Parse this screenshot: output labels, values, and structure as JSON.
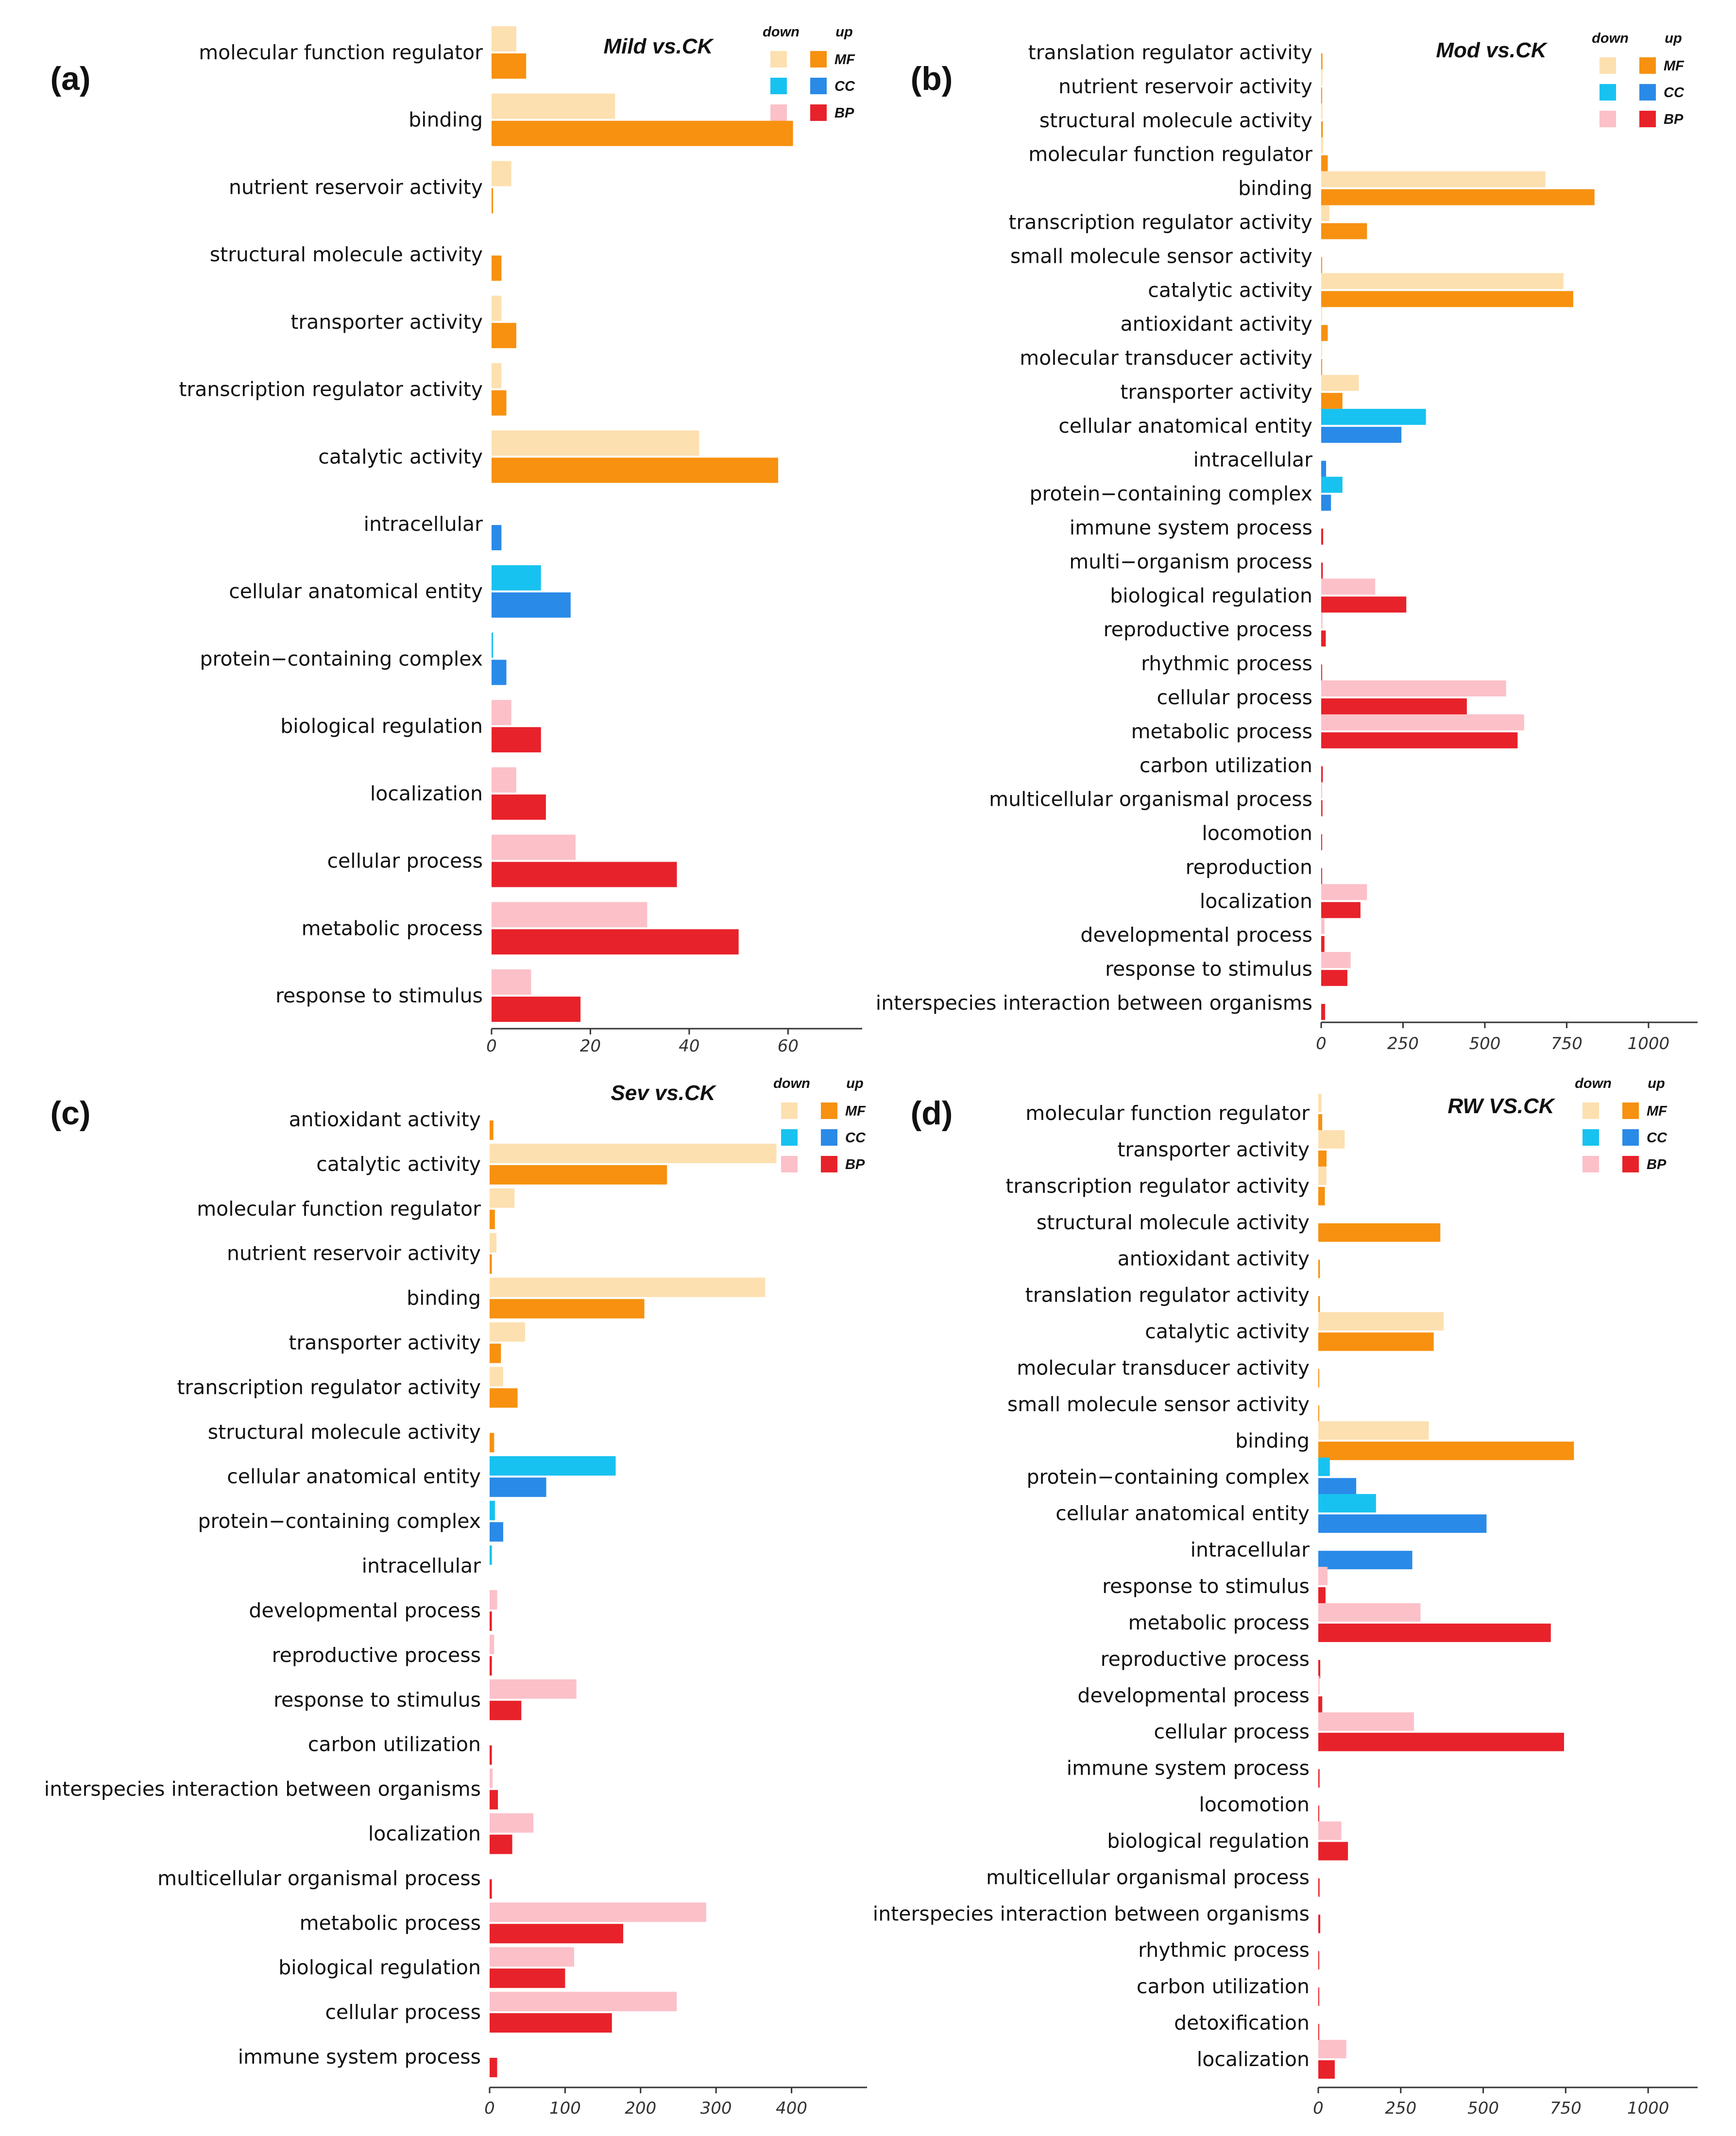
{
  "colors": {
    "MF": {
      "down": "#fde0b0",
      "up": "#f7910f"
    },
    "CC": {
      "down": "#18c2f0",
      "up": "#2a8ae8"
    },
    "BP": {
      "down": "#fcc0c8",
      "up": "#e8222a"
    }
  },
  "chart_data": [
    {
      "panel": "(a)",
      "type": "bar",
      "orientation": "horizontal",
      "title": "Mild vs.CK",
      "legend": {
        "down_label": "down",
        "up_label": "up",
        "groups": [
          "MF",
          "CC",
          "BP"
        ]
      },
      "xlim": [
        0,
        75
      ],
      "ticks": [
        0,
        20,
        40,
        60
      ],
      "categories": [
        {
          "label": "molecular function regulator",
          "group": "MF",
          "down": 5,
          "up": 7
        },
        {
          "label": "binding",
          "group": "MF",
          "down": 25,
          "up": 61
        },
        {
          "label": "nutrient reservoir activity",
          "group": "MF",
          "down": 4,
          "up": 0.3
        },
        {
          "label": "structural molecule activity",
          "group": "MF",
          "down": 0,
          "up": 2
        },
        {
          "label": "transporter activity",
          "group": "MF",
          "down": 2,
          "up": 5
        },
        {
          "label": "transcription regulator activity",
          "group": "MF",
          "down": 2,
          "up": 3
        },
        {
          "label": "catalytic activity",
          "group": "MF",
          "down": 42,
          "up": 58
        },
        {
          "label": "intracellular",
          "group": "CC",
          "down": 0,
          "up": 2
        },
        {
          "label": "cellular anatomical entity",
          "group": "CC",
          "down": 10,
          "up": 16
        },
        {
          "label": "protein−containing complex",
          "group": "CC",
          "down": 0.3,
          "up": 3
        },
        {
          "label": "biological regulation",
          "group": "BP",
          "down": 4,
          "up": 10
        },
        {
          "label": "localization",
          "group": "BP",
          "down": 5,
          "up": 11
        },
        {
          "label": "cellular process",
          "group": "BP",
          "down": 17,
          "up": 37.5
        },
        {
          "label": "metabolic process",
          "group": "BP",
          "down": 31.5,
          "up": 50
        },
        {
          "label": "response to stimulus",
          "group": "BP",
          "down": 8,
          "up": 18
        }
      ]
    },
    {
      "panel": "(b)",
      "type": "bar",
      "orientation": "horizontal",
      "title": "Mod vs.CK",
      "legend": {
        "down_label": "down",
        "up_label": "up",
        "groups": [
          "MF",
          "CC",
          "BP"
        ]
      },
      "xlim": [
        0,
        1150
      ],
      "ticks": [
        0,
        250,
        500,
        750,
        1000
      ],
      "categories": [
        {
          "label": "translation regulator activity",
          "group": "MF",
          "down": 0,
          "up": 4
        },
        {
          "label": "nutrient reservoir activity",
          "group": "MF",
          "down": 4,
          "up": 3
        },
        {
          "label": "structural molecule activity",
          "group": "MF",
          "down": 4,
          "up": 5
        },
        {
          "label": "molecular function regulator",
          "group": "MF",
          "down": 6,
          "up": 20
        },
        {
          "label": "binding",
          "group": "MF",
          "down": 685,
          "up": 835
        },
        {
          "label": "transcription regulator activity",
          "group": "MF",
          "down": 25,
          "up": 140
        },
        {
          "label": "small molecule sensor activity",
          "group": "MF",
          "down": 0,
          "up": 2
        },
        {
          "label": "catalytic activity",
          "group": "MF",
          "down": 740,
          "up": 770
        },
        {
          "label": "antioxidant activity",
          "group": "MF",
          "down": 3,
          "up": 20
        },
        {
          "label": "molecular transducer activity",
          "group": "MF",
          "down": 2,
          "up": 3
        },
        {
          "label": "transporter activity",
          "group": "MF",
          "down": 115,
          "up": 65
        },
        {
          "label": "cellular anatomical entity",
          "group": "CC",
          "down": 320,
          "up": 245
        },
        {
          "label": "intracellular",
          "group": "CC",
          "down": 0,
          "up": 15
        },
        {
          "label": "protein−containing complex",
          "group": "CC",
          "down": 65,
          "up": 30
        },
        {
          "label": "immune system process",
          "group": "BP",
          "down": 0,
          "up": 6
        },
        {
          "label": "multi−organism process",
          "group": "BP",
          "down": 0,
          "up": 5
        },
        {
          "label": "biological regulation",
          "group": "BP",
          "down": 165,
          "up": 260
        },
        {
          "label": "reproductive process",
          "group": "BP",
          "down": 4,
          "up": 14
        },
        {
          "label": "rhythmic process",
          "group": "BP",
          "down": 0,
          "up": 3
        },
        {
          "label": "cellular process",
          "group": "BP",
          "down": 565,
          "up": 445
        },
        {
          "label": "metabolic process",
          "group": "BP",
          "down": 620,
          "up": 600
        },
        {
          "label": "carbon utilization",
          "group": "BP",
          "down": 0,
          "up": 5
        },
        {
          "label": "multicellular organismal process",
          "group": "BP",
          "down": 3,
          "up": 4
        },
        {
          "label": "locomotion",
          "group": "BP",
          "down": 0,
          "up": 3
        },
        {
          "label": "reproduction",
          "group": "BP",
          "down": 0,
          "up": 3
        },
        {
          "label": "localization",
          "group": "BP",
          "down": 140,
          "up": 120
        },
        {
          "label": "developmental process",
          "group": "BP",
          "down": 10,
          "up": 10
        },
        {
          "label": "response to stimulus",
          "group": "BP",
          "down": 90,
          "up": 80
        },
        {
          "label": "interspecies interaction between organisms",
          "group": "BP",
          "down": 0,
          "up": 12
        }
      ]
    },
    {
      "panel": "(c)",
      "type": "bar",
      "orientation": "horizontal",
      "title": "Sev vs.CK",
      "legend": {
        "down_label": "down",
        "up_label": "up",
        "groups": [
          "MF",
          "CC",
          "BP"
        ]
      },
      "xlim": [
        0,
        500
      ],
      "ticks": [
        0,
        100,
        200,
        300,
        400
      ],
      "categories": [
        {
          "label": "antioxidant activity",
          "group": "MF",
          "down": 0,
          "up": 5
        },
        {
          "label": "catalytic activity",
          "group": "MF",
          "down": 380,
          "up": 235
        },
        {
          "label": "molecular function regulator",
          "group": "MF",
          "down": 33,
          "up": 7
        },
        {
          "label": "nutrient reservoir activity",
          "group": "MF",
          "down": 9,
          "up": 3
        },
        {
          "label": "binding",
          "group": "MF",
          "down": 365,
          "up": 205
        },
        {
          "label": "transporter activity",
          "group": "MF",
          "down": 47,
          "up": 15
        },
        {
          "label": "transcription regulator activity",
          "group": "MF",
          "down": 18,
          "up": 37
        },
        {
          "label": "structural molecule activity",
          "group": "MF",
          "down": 0,
          "up": 6
        },
        {
          "label": "cellular anatomical entity",
          "group": "CC",
          "down": 167,
          "up": 75
        },
        {
          "label": "protein−containing complex",
          "group": "CC",
          "down": 7,
          "up": 18
        },
        {
          "label": "intracellular",
          "group": "CC",
          "down": 3,
          "up": 0
        },
        {
          "label": "developmental process",
          "group": "BP",
          "down": 10,
          "up": 3
        },
        {
          "label": "reproductive process",
          "group": "BP",
          "down": 6,
          "up": 3
        },
        {
          "label": "response to stimulus",
          "group": "BP",
          "down": 115,
          "up": 42
        },
        {
          "label": "carbon utilization",
          "group": "BP",
          "down": 0,
          "up": 3
        },
        {
          "label": "interspecies interaction between organisms",
          "group": "BP",
          "down": 4,
          "up": 11
        },
        {
          "label": "localization",
          "group": "BP",
          "down": 58,
          "up": 30
        },
        {
          "label": "multicellular organismal process",
          "group": "BP",
          "down": 0,
          "up": 3
        },
        {
          "label": "metabolic process",
          "group": "BP",
          "down": 287,
          "up": 177
        },
        {
          "label": "biological regulation",
          "group": "BP",
          "down": 112,
          "up": 100
        },
        {
          "label": "cellular process",
          "group": "BP",
          "down": 248,
          "up": 162
        },
        {
          "label": "immune system process",
          "group": "BP",
          "down": 0,
          "up": 10
        }
      ]
    },
    {
      "panel": "(d)",
      "type": "bar",
      "orientation": "horizontal",
      "title": "RW VS.CK",
      "legend": {
        "down_label": "down",
        "up_label": "up",
        "groups": [
          "MF",
          "CC",
          "BP"
        ]
      },
      "xlim": [
        0,
        1150
      ],
      "ticks": [
        0,
        250,
        500,
        750,
        1000
      ],
      "categories": [
        {
          "label": "molecular function regulator",
          "group": "MF",
          "down": 10,
          "up": 12
        },
        {
          "label": "transporter activity",
          "group": "MF",
          "down": 80,
          "up": 25
        },
        {
          "label": "transcription regulator activity",
          "group": "MF",
          "down": 25,
          "up": 20
        },
        {
          "label": "structural molecule activity",
          "group": "MF",
          "down": 0,
          "up": 370
        },
        {
          "label": "antioxidant activity",
          "group": "MF",
          "down": 0,
          "up": 5
        },
        {
          "label": "translation regulator activity",
          "group": "MF",
          "down": 0,
          "up": 5
        },
        {
          "label": "catalytic activity",
          "group": "MF",
          "down": 380,
          "up": 350
        },
        {
          "label": "molecular transducer activity",
          "group": "MF",
          "down": 0,
          "up": 3
        },
        {
          "label": "small molecule sensor activity",
          "group": "MF",
          "down": 0,
          "up": 3
        },
        {
          "label": "binding",
          "group": "MF",
          "down": 335,
          "up": 775
        },
        {
          "label": "protein−containing complex",
          "group": "CC",
          "down": 35,
          "up": 115
        },
        {
          "label": "cellular anatomical entity",
          "group": "CC",
          "down": 175,
          "up": 510
        },
        {
          "label": "intracellular",
          "group": "CC",
          "down": 0,
          "up": 285
        },
        {
          "label": "response to stimulus",
          "group": "BP",
          "down": 28,
          "up": 22
        },
        {
          "label": "metabolic process",
          "group": "BP",
          "down": 310,
          "up": 705
        },
        {
          "label": "reproductive process",
          "group": "BP",
          "down": 0,
          "up": 6
        },
        {
          "label": "developmental process",
          "group": "BP",
          "down": 4,
          "up": 12
        },
        {
          "label": "cellular process",
          "group": "BP",
          "down": 290,
          "up": 745
        },
        {
          "label": "immune system process",
          "group": "BP",
          "down": 0,
          "up": 4
        },
        {
          "label": "locomotion",
          "group": "BP",
          "down": 0,
          "up": 3
        },
        {
          "label": "biological regulation",
          "group": "BP",
          "down": 70,
          "up": 90
        },
        {
          "label": "multicellular organismal process",
          "group": "BP",
          "down": 0,
          "up": 4
        },
        {
          "label": "interspecies interaction between organisms",
          "group": "BP",
          "down": 0,
          "up": 6
        },
        {
          "label": "rhythmic process",
          "group": "BP",
          "down": 0,
          "up": 3
        },
        {
          "label": "carbon utilization",
          "group": "BP",
          "down": 0,
          "up": 3
        },
        {
          "label": "detoxification",
          "group": "BP",
          "down": 0,
          "up": 2
        },
        {
          "label": "localization",
          "group": "BP",
          "down": 85,
          "up": 50
        }
      ]
    }
  ]
}
